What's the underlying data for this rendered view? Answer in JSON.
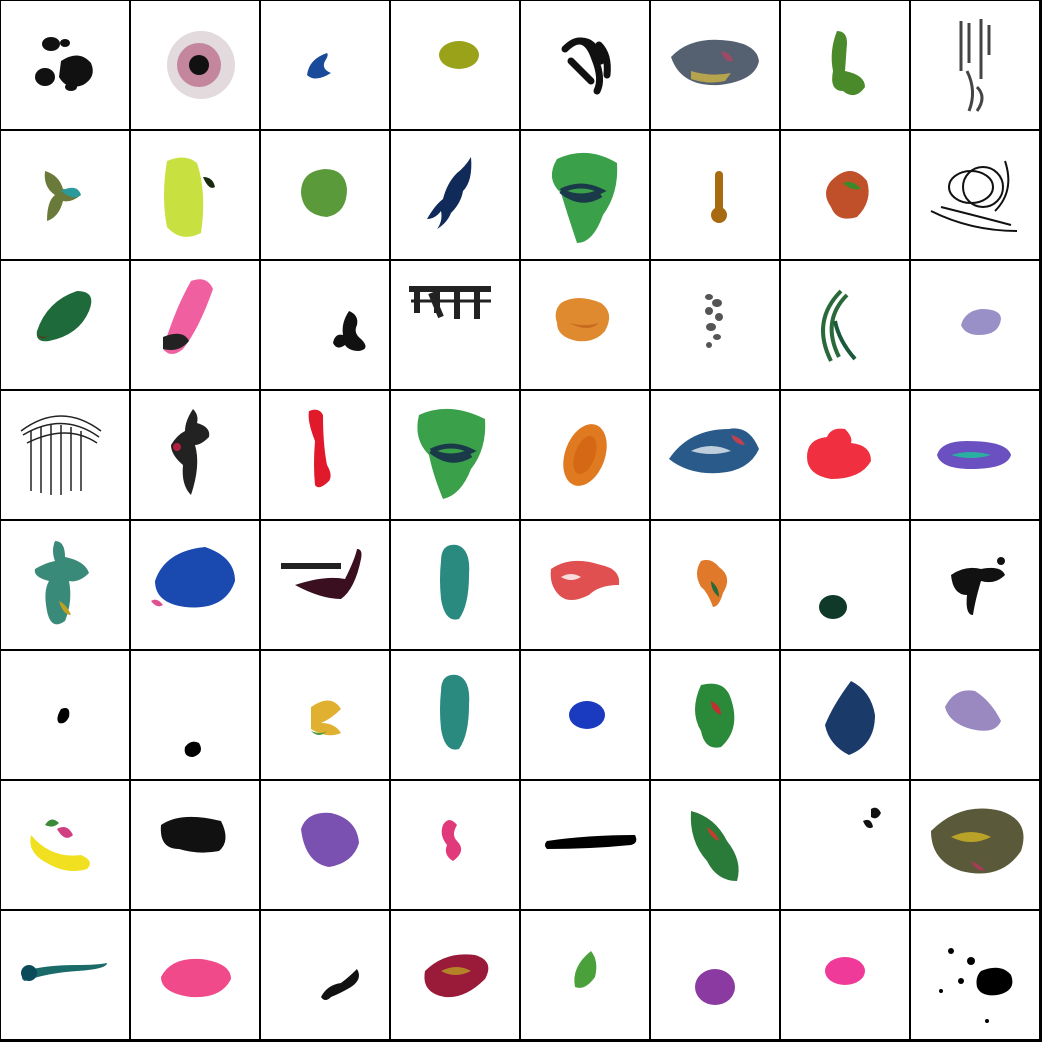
{
  "grid": {
    "rows": 8,
    "cols": 8,
    "cells": [
      {
        "icon": "black-ink-blots-icon",
        "color": "#111111"
      },
      {
        "icon": "dark-spray-burst-icon",
        "color": "#3a0a1a"
      },
      {
        "icon": "blue-crescent-stroke-icon",
        "color": "#1a4a9a"
      },
      {
        "icon": "olive-oval-icon",
        "color": "#9aa21a"
      },
      {
        "icon": "black-brush-tendrils-icon",
        "color": "#111111"
      },
      {
        "icon": "gray-multicolor-smear-icon",
        "color": "#556070"
      },
      {
        "icon": "green-s-stroke-icon",
        "color": "#4a8a2a"
      },
      {
        "icon": "gray-drip-marks-icon",
        "color": "#444444"
      },
      {
        "icon": "olive-multicolor-stroke-icon",
        "color": "#6a7a3a"
      },
      {
        "icon": "lime-yellow-smear-icon",
        "color": "#c8e040"
      },
      {
        "icon": "green-blob-icon",
        "color": "#5a9a3a"
      },
      {
        "icon": "navy-splatter-icon",
        "color": "#102a5a"
      },
      {
        "icon": "green-swirl-blob-icon",
        "color": "#3aa04a"
      },
      {
        "icon": "brown-vertical-stroke-icon",
        "color": "#a86a10"
      },
      {
        "icon": "red-green-smear-icon",
        "color": "#c0502a"
      },
      {
        "icon": "black-scribble-loops-icon",
        "color": "#111111"
      },
      {
        "icon": "dark-green-smear-icon",
        "color": "#1f6a3a"
      },
      {
        "icon": "pink-diagonal-stroke-icon",
        "color": "#f060a0"
      },
      {
        "icon": "black-small-squiggle-icon",
        "color": "#111111"
      },
      {
        "icon": "black-bridge-strokes-icon",
        "color": "#222222"
      },
      {
        "icon": "orange-blob-icon",
        "color": "#e08a30"
      },
      {
        "icon": "gray-dot-column-icon",
        "color": "#555555"
      },
      {
        "icon": "green-arc-stroke-icon",
        "color": "#2a6a3a"
      },
      {
        "icon": "lavender-drop-icon",
        "color": "#9a90c8"
      },
      {
        "icon": "black-hatched-arch-icon",
        "color": "#222222"
      },
      {
        "icon": "black-vertical-smear-icon",
        "color": "#222222"
      },
      {
        "icon": "red-vertical-stroke-icon",
        "color": "#e01a2a"
      },
      {
        "icon": "green-swirl-blob-icon",
        "color": "#3aa04a"
      },
      {
        "icon": "orange-oval-icon",
        "color": "#e07a20"
      },
      {
        "icon": "blue-white-splash-icon",
        "color": "#2a5a8a"
      },
      {
        "icon": "red-cloud-blob-icon",
        "color": "#f03040"
      },
      {
        "icon": "purple-teal-stroke-icon",
        "color": "#6a50c0"
      },
      {
        "icon": "teal-figure-smear-icon",
        "color": "#3a8a7a"
      },
      {
        "icon": "blue-large-splash-icon",
        "color": "#1a4ab0"
      },
      {
        "icon": "black-maroon-chair-icon",
        "color": "#3a1020"
      },
      {
        "icon": "teal-sole-shape-icon",
        "color": "#2a8a80"
      },
      {
        "icon": "multicolor-lace-smear-icon",
        "color": "#e05050"
      },
      {
        "icon": "orange-green-stroke-icon",
        "color": "#e07a2a"
      },
      {
        "icon": "dark-green-dot-icon",
        "color": "#0f3a2a"
      },
      {
        "icon": "black-splatter-icon",
        "color": "#111111"
      },
      {
        "icon": "black-small-drop-icon",
        "color": "#000000"
      },
      {
        "icon": "black-tiny-blot-icon",
        "color": "#000000"
      },
      {
        "icon": "yellow-green-stroke-icon",
        "color": "#e0b030"
      },
      {
        "icon": "teal-sole-shape-icon",
        "color": "#2a8a80"
      },
      {
        "icon": "blue-oval-icon",
        "color": "#1a3ac0"
      },
      {
        "icon": "green-red-smear-icon",
        "color": "#2a8a3a"
      },
      {
        "icon": "navy-splash-icon",
        "color": "#1a3a6a"
      },
      {
        "icon": "lavender-smear-icon",
        "color": "#9a88c0"
      },
      {
        "icon": "yellow-multicolor-splash-icon",
        "color": "#f0e020"
      },
      {
        "icon": "black-rough-rect-icon",
        "color": "#111111"
      },
      {
        "icon": "purple-blob-icon",
        "color": "#7a50b0"
      },
      {
        "icon": "pink-squiggle-icon",
        "color": "#e03a7a"
      },
      {
        "icon": "black-horizontal-stroke-icon",
        "color": "#000000"
      },
      {
        "icon": "green-multicolor-smear-icon",
        "color": "#2a7a3a"
      },
      {
        "icon": "black-small-marks-icon",
        "color": "#111111"
      },
      {
        "icon": "olive-multicolor-mass-icon",
        "color": "#5a5a3a"
      },
      {
        "icon": "teal-brush-stroke-icon",
        "color": "#1a6a6a"
      },
      {
        "icon": "pink-blob-icon",
        "color": "#f04a8a"
      },
      {
        "icon": "black-corner-squiggle-icon",
        "color": "#111111"
      },
      {
        "icon": "maroon-olive-smear-icon",
        "color": "#9a1a3a"
      },
      {
        "icon": "green-leaf-stroke-icon",
        "color": "#4aa03a"
      },
      {
        "icon": "purple-round-blob-icon",
        "color": "#8a3aa0"
      },
      {
        "icon": "magenta-oval-icon",
        "color": "#f03a9a"
      },
      {
        "icon": "black-speckle-splatter-icon",
        "color": "#000000"
      }
    ]
  }
}
